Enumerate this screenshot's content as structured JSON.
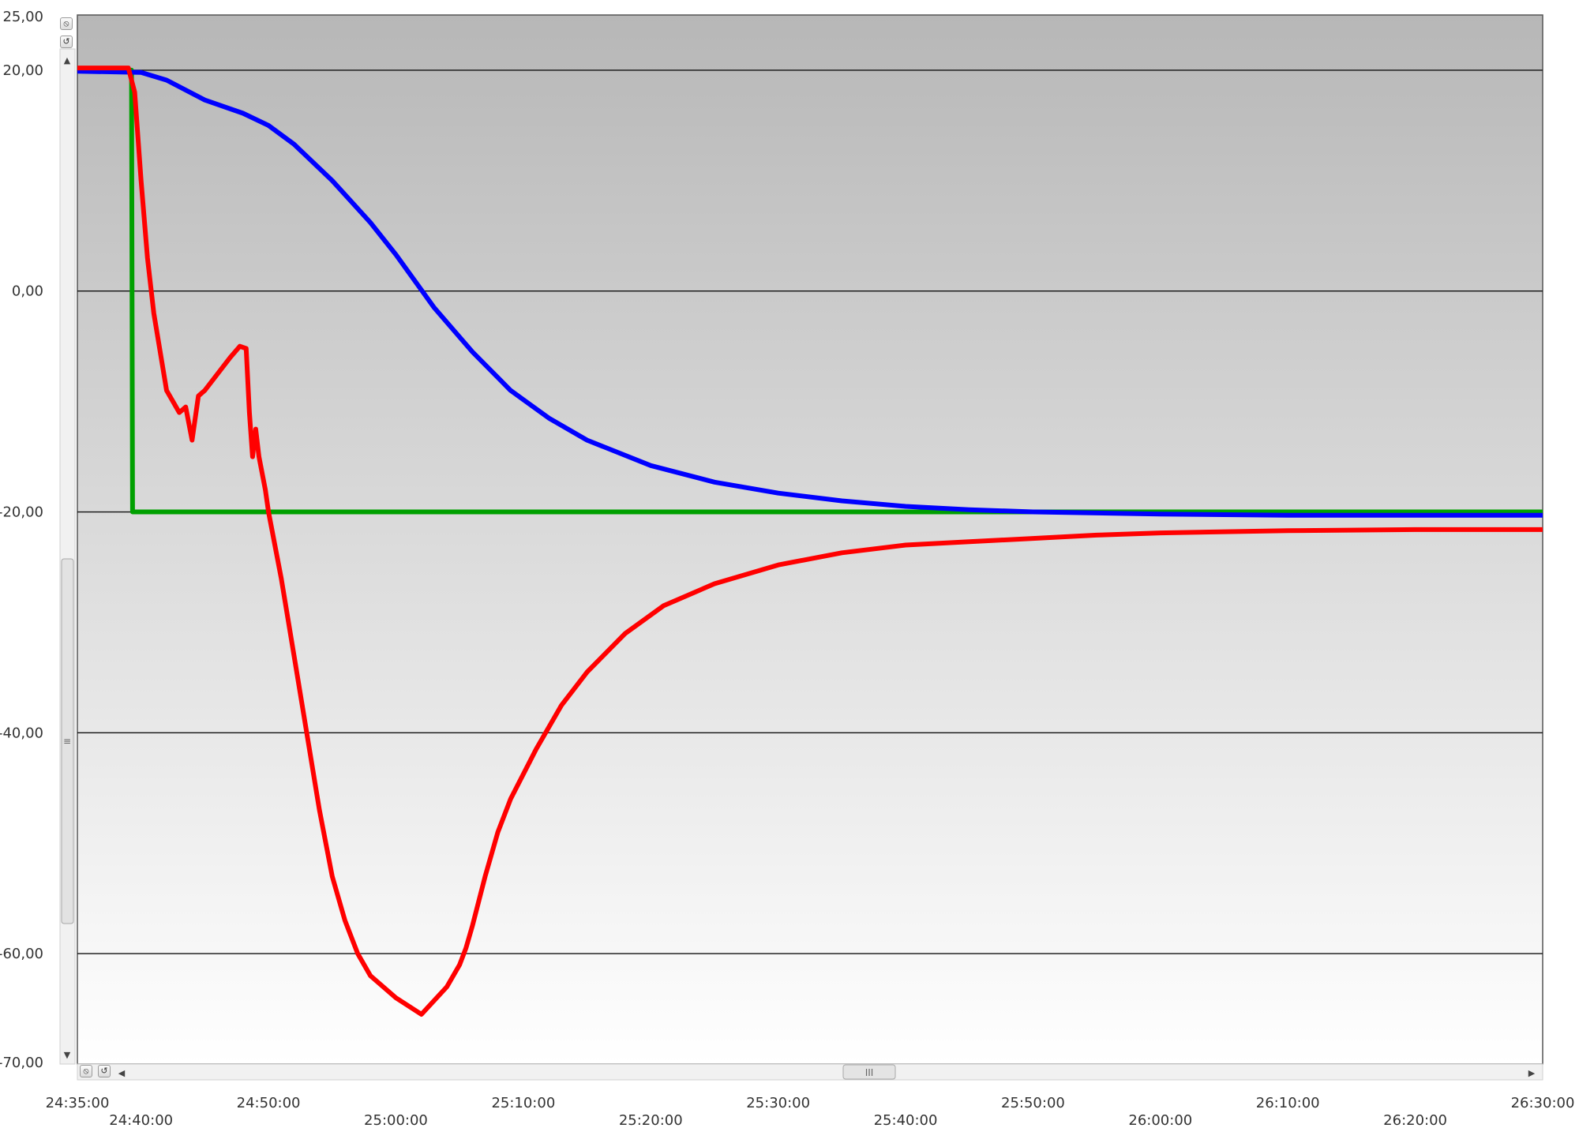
{
  "chart_data": {
    "type": "line",
    "title": "",
    "xlabel": "",
    "ylabel": "",
    "ylim": [
      -70,
      25
    ],
    "xlim": [
      "24:35:00",
      "26:30:00"
    ],
    "y_ticks": [
      "25,00",
      "20,00",
      "0,00",
      "-20,00",
      "-40,00",
      "-60,00",
      "-70,00"
    ],
    "y_tick_values": [
      25,
      20,
      0,
      -20,
      -40,
      -60,
      -70
    ],
    "x_ticks_upper": [
      "24:35:00",
      "24:50:00",
      "25:10:00",
      "25:30:00",
      "25:50:00",
      "26:10:00",
      "26:30:00"
    ],
    "x_ticks_lower": [
      "24:40:00",
      "25:00:00",
      "25:20:00",
      "25:40:00",
      "26:00:00",
      "26:20:00"
    ],
    "grid": "horizontal at -60, -40, -20, 0, 20",
    "legend": "none",
    "series": [
      {
        "color": "#00a000",
        "x": [
          "24:35:00",
          "24:39:15",
          "24:39:20",
          "26:30:00"
        ],
        "y": [
          20,
          20,
          -20,
          -20
        ]
      },
      {
        "color": "#0000ff",
        "x": [
          "24:35:00",
          "24:40:00",
          "24:42:00",
          "24:45:00",
          "24:48:00",
          "24:50:00",
          "24:52:00",
          "24:55:00",
          "24:58:00",
          "25:00:00",
          "25:03:00",
          "25:06:00",
          "25:09:00",
          "25:12:00",
          "25:15:00",
          "25:20:00",
          "25:25:00",
          "25:30:00",
          "25:35:00",
          "25:40:00",
          "25:45:00",
          "25:50:00",
          "26:00:00",
          "26:10:00",
          "26:20:00",
          "26:30:00"
        ],
        "y": [
          19.9,
          19.8,
          19.1,
          17.3,
          16.1,
          15.0,
          13.3,
          10.0,
          6.2,
          3.3,
          -1.5,
          -5.5,
          -9.0,
          -11.5,
          -13.5,
          -15.8,
          -17.3,
          -18.3,
          -19.0,
          -19.5,
          -19.8,
          -20.0,
          -20.2,
          -20.3,
          -20.3,
          -20.3
        ]
      },
      {
        "color": "#ff0000",
        "x": [
          "24:35:00",
          "24:39:00",
          "24:39:30",
          "24:40:00",
          "24:40:30",
          "24:41:00",
          "24:42:00",
          "24:43:00",
          "24:43:30",
          "24:44:00",
          "24:44:30",
          "24:45:00",
          "24:46:00",
          "24:47:00",
          "24:47:45",
          "24:48:15",
          "24:48:30",
          "24:48:45",
          "24:49:00",
          "24:49:15",
          "24:49:45",
          "24:50:00",
          "24:51:00",
          "24:52:00",
          "24:53:00",
          "24:54:00",
          "24:55:00",
          "24:56:00",
          "24:57:00",
          "24:58:00",
          "25:00:00",
          "25:02:00",
          "25:04:00",
          "25:05:00",
          "25:05:30",
          "25:06:00",
          "25:07:00",
          "25:08:00",
          "25:09:00",
          "25:11:00",
          "25:13:00",
          "25:15:00",
          "25:18:00",
          "25:21:00",
          "25:25:00",
          "25:30:00",
          "25:35:00",
          "25:40:00",
          "25:45:00",
          "25:50:00",
          "25:55:00",
          "26:00:00",
          "26:10:00",
          "26:20:00",
          "26:30:00"
        ],
        "y": [
          20.2,
          20.2,
          18.0,
          10.0,
          3.0,
          -2.0,
          -9.0,
          -11.0,
          -10.5,
          -13.5,
          -9.5,
          -9.0,
          -7.5,
          -6.0,
          -5.0,
          -5.2,
          -11.0,
          -15.0,
          -12.5,
          -15.0,
          -18.0,
          -20.0,
          -26.0,
          -33.0,
          -40.0,
          -47.0,
          -53.0,
          -57.0,
          -60.0,
          -62.0,
          -64.0,
          -65.5,
          -63.0,
          -61.0,
          -59.5,
          -57.5,
          -53.0,
          -49.0,
          -46.0,
          -41.5,
          -37.5,
          -34.5,
          -31.0,
          -28.5,
          -26.5,
          -24.8,
          -23.7,
          -23.0,
          -22.7,
          -22.4,
          -22.1,
          -21.9,
          -21.7,
          -21.6,
          -21.6
        ]
      }
    ]
  }
}
